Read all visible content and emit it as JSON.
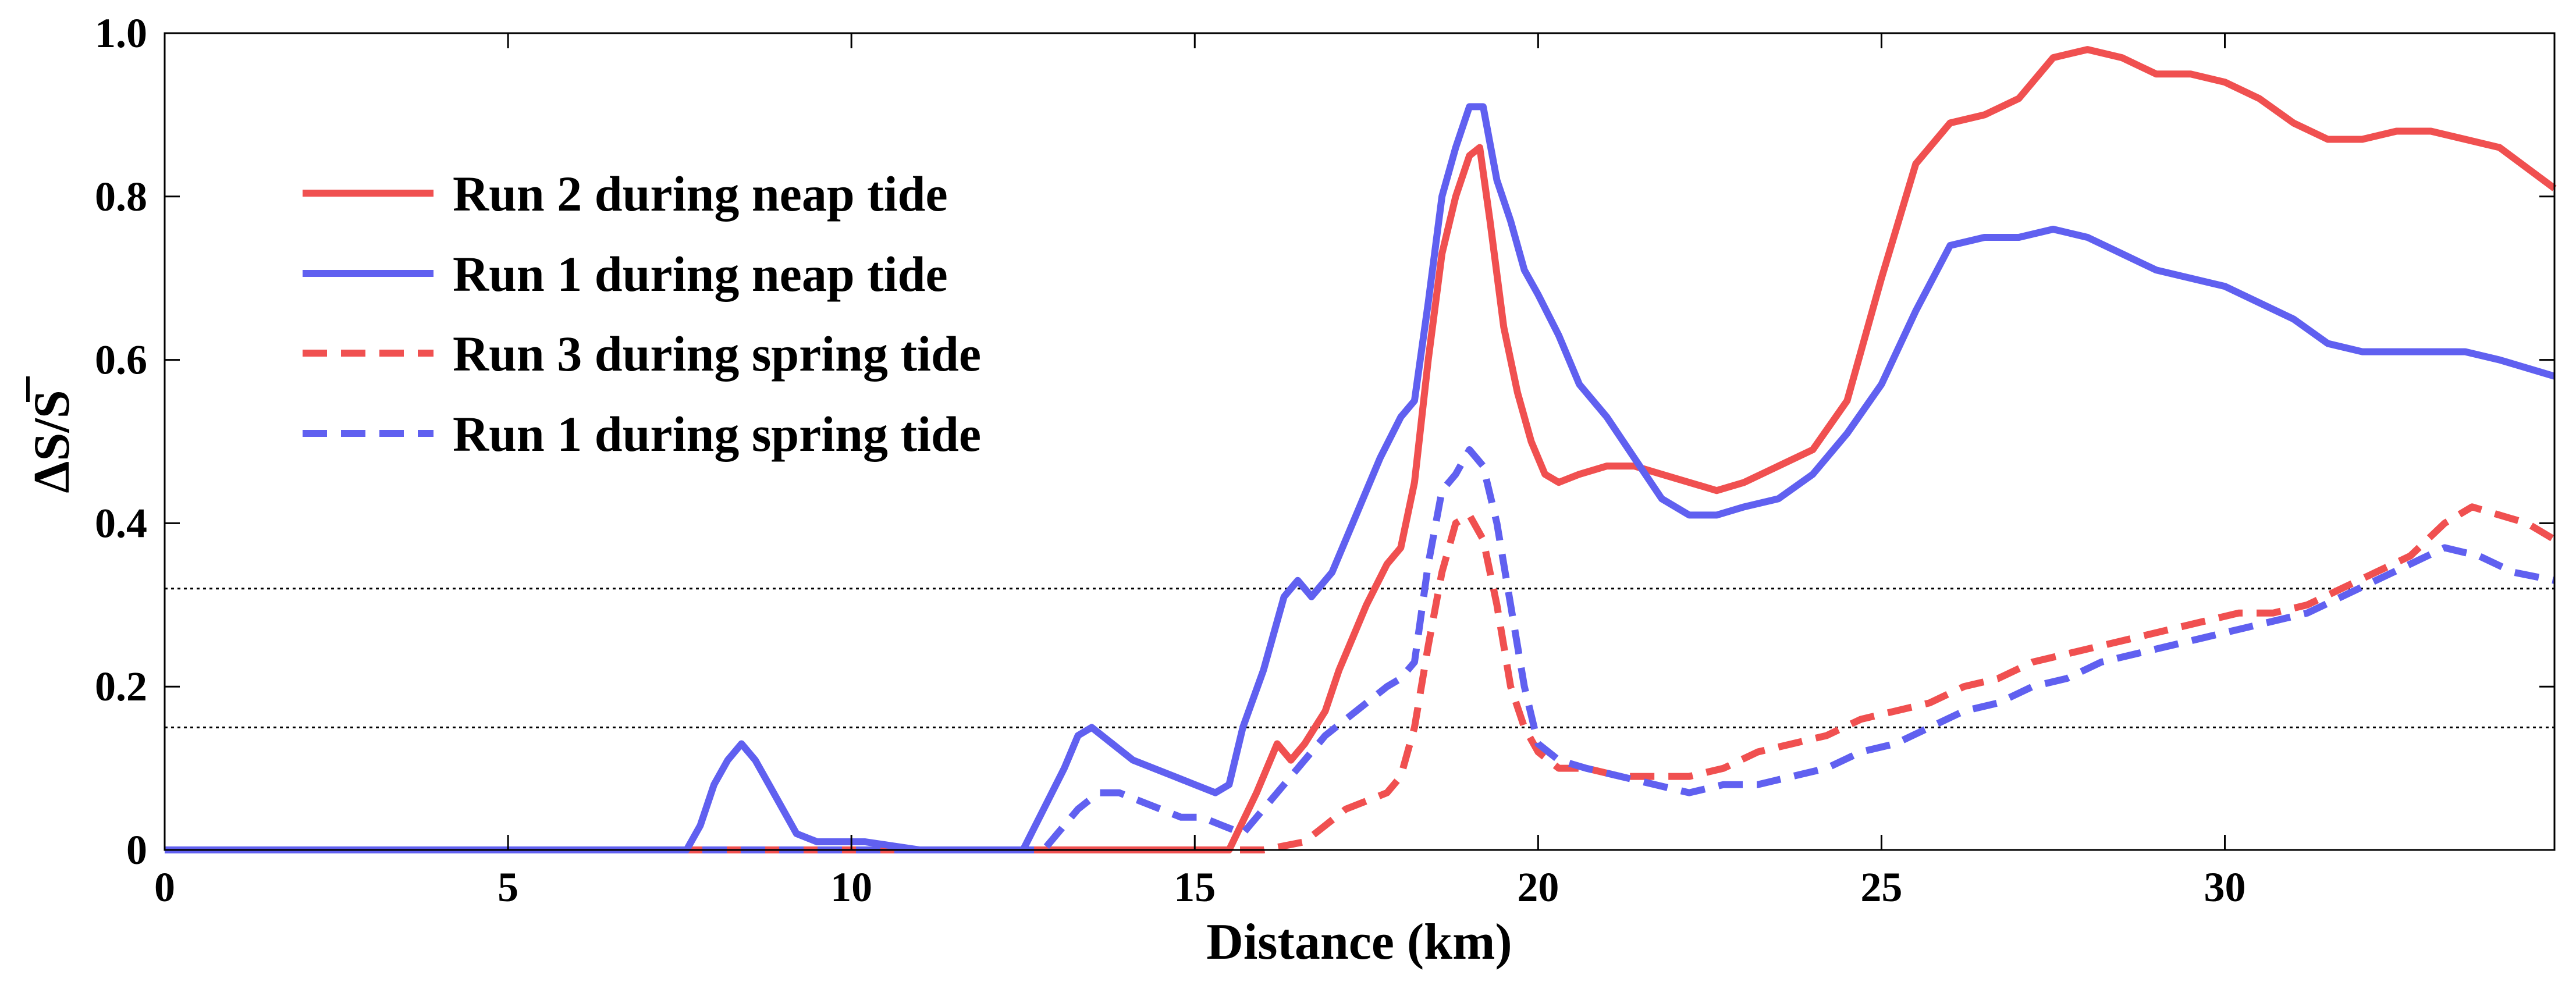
{
  "chart_data": {
    "type": "line",
    "title": "",
    "xlabel": "Distance (km)",
    "ylabel": "ΔS/S̄",
    "ylabel_parts": {
      "delta": "Δ",
      "s1": "S",
      "slash": "/",
      "s2": "S"
    },
    "xlim": [
      0,
      34.8
    ],
    "ylim": [
      0,
      1.0
    ],
    "xticks": [
      0,
      5,
      10,
      15,
      20,
      25,
      30
    ],
    "xtick_labels": [
      "0",
      "5",
      "10",
      "15",
      "20",
      "25",
      "30"
    ],
    "yticks": [
      0,
      0.2,
      0.4,
      0.6,
      0.8,
      1.0
    ],
    "ytick_labels": [
      "0",
      "0.2",
      "0.4",
      "0.6",
      "0.8",
      "1.0"
    ],
    "grid": false,
    "legend_position": "upper-left",
    "reference_lines": [
      {
        "name": "threshold-high",
        "y": 0.32,
        "style": "dotted",
        "color": "#000000"
      },
      {
        "name": "threshold-low",
        "y": 0.15,
        "style": "dotted",
        "color": "#000000"
      }
    ],
    "series": [
      {
        "name": "Run 2 during neap tide",
        "color": "#f05050",
        "style": "solid",
        "x": [
          0,
          15.5,
          15.9,
          16.2,
          16.4,
          16.6,
          16.9,
          17.1,
          17.3,
          17.5,
          17.8,
          18.0,
          18.2,
          18.4,
          18.6,
          18.8,
          19.0,
          19.15,
          19.3,
          19.5,
          19.7,
          19.9,
          20.1,
          20.3,
          20.6,
          21.0,
          21.4,
          21.8,
          22.2,
          22.6,
          23.0,
          23.5,
          24.0,
          24.5,
          25.0,
          25.5,
          26.0,
          26.5,
          27.0,
          27.5,
          28.0,
          28.5,
          29.0,
          29.5,
          30.0,
          30.5,
          31.0,
          31.5,
          32.0,
          32.5,
          33.0,
          33.5,
          34.0,
          34.8
        ],
        "y": [
          0,
          0,
          0.07,
          0.13,
          0.11,
          0.13,
          0.17,
          0.22,
          0.26,
          0.3,
          0.35,
          0.37,
          0.45,
          0.6,
          0.73,
          0.8,
          0.85,
          0.86,
          0.77,
          0.64,
          0.56,
          0.5,
          0.46,
          0.45,
          0.46,
          0.47,
          0.47,
          0.46,
          0.45,
          0.44,
          0.45,
          0.47,
          0.49,
          0.55,
          0.7,
          0.84,
          0.89,
          0.9,
          0.92,
          0.97,
          0.98,
          0.97,
          0.95,
          0.95,
          0.94,
          0.92,
          0.89,
          0.87,
          0.87,
          0.88,
          0.88,
          0.87,
          0.86,
          0.81
        ]
      },
      {
        "name": "Run 1 during neap tide",
        "color": "#6060f0",
        "style": "solid",
        "x": [
          0,
          7.6,
          7.8,
          8.0,
          8.2,
          8.4,
          8.6,
          8.8,
          9.0,
          9.2,
          9.5,
          9.8,
          10.2,
          10.6,
          11.0,
          12.0,
          12.5,
          12.8,
          13.1,
          13.3,
          13.5,
          13.8,
          14.1,
          14.4,
          14.7,
          15.0,
          15.3,
          15.5,
          15.7,
          16.0,
          16.3,
          16.5,
          16.7,
          17.0,
          17.3,
          17.5,
          17.7,
          18.0,
          18.2,
          18.4,
          18.6,
          18.8,
          19.0,
          19.2,
          19.4,
          19.6,
          19.8,
          20.0,
          20.3,
          20.6,
          21.0,
          21.4,
          21.8,
          22.2,
          22.6,
          23.0,
          23.5,
          24.0,
          24.5,
          25.0,
          25.5,
          26.0,
          26.5,
          27.0,
          27.5,
          28.0,
          28.5,
          29.0,
          29.5,
          30.0,
          30.5,
          31.0,
          31.5,
          32.0,
          32.5,
          33.0,
          33.5,
          34.0,
          34.8
        ],
        "y": [
          0,
          0,
          0.03,
          0.08,
          0.11,
          0.13,
          0.11,
          0.08,
          0.05,
          0.02,
          0.01,
          0.01,
          0.01,
          0.005,
          0,
          0,
          0,
          0.05,
          0.1,
          0.14,
          0.15,
          0.13,
          0.11,
          0.1,
          0.09,
          0.08,
          0.07,
          0.08,
          0.15,
          0.22,
          0.31,
          0.33,
          0.31,
          0.34,
          0.4,
          0.44,
          0.48,
          0.53,
          0.55,
          0.67,
          0.8,
          0.86,
          0.91,
          0.91,
          0.82,
          0.77,
          0.71,
          0.68,
          0.63,
          0.57,
          0.53,
          0.48,
          0.43,
          0.41,
          0.41,
          0.42,
          0.43,
          0.46,
          0.51,
          0.57,
          0.66,
          0.74,
          0.75,
          0.75,
          0.76,
          0.75,
          0.73,
          0.71,
          0.7,
          0.69,
          0.67,
          0.65,
          0.62,
          0.61,
          0.61,
          0.61,
          0.61,
          0.6,
          0.58
        ]
      },
      {
        "name": "Run 3 during spring tide",
        "color": "#f05050",
        "style": "dashed",
        "x": [
          0,
          16.0,
          16.6,
          16.9,
          17.2,
          17.5,
          17.8,
          18.0,
          18.2,
          18.4,
          18.6,
          18.8,
          19.0,
          19.2,
          19.4,
          19.6,
          19.8,
          20.0,
          20.3,
          20.7,
          21.2,
          21.7,
          22.2,
          22.7,
          23.2,
          23.7,
          24.2,
          24.7,
          25.2,
          25.7,
          26.2,
          26.7,
          27.2,
          27.7,
          28.2,
          28.7,
          29.2,
          29.7,
          30.2,
          30.7,
          31.2,
          31.7,
          32.2,
          32.7,
          33.2,
          33.6,
          34.0,
          34.4,
          34.8
        ],
        "y": [
          0,
          0,
          0.01,
          0.03,
          0.05,
          0.06,
          0.07,
          0.09,
          0.15,
          0.25,
          0.34,
          0.4,
          0.41,
          0.38,
          0.3,
          0.2,
          0.15,
          0.12,
          0.1,
          0.1,
          0.09,
          0.09,
          0.09,
          0.1,
          0.12,
          0.13,
          0.14,
          0.16,
          0.17,
          0.18,
          0.2,
          0.21,
          0.23,
          0.24,
          0.25,
          0.26,
          0.27,
          0.28,
          0.29,
          0.29,
          0.3,
          0.32,
          0.34,
          0.36,
          0.4,
          0.42,
          0.41,
          0.4,
          0.38
        ]
      },
      {
        "name": "Run 1 during spring tide",
        "color": "#6060f0",
        "style": "dashed",
        "x": [
          0,
          12.8,
          13.0,
          13.3,
          13.6,
          13.9,
          14.2,
          14.5,
          14.8,
          15.1,
          15.4,
          15.7,
          16.0,
          16.3,
          16.6,
          16.9,
          17.2,
          17.5,
          17.8,
          18.0,
          18.2,
          18.4,
          18.6,
          18.8,
          19.0,
          19.2,
          19.4,
          19.6,
          19.8,
          20.0,
          20.3,
          20.7,
          21.2,
          21.7,
          22.2,
          22.7,
          23.2,
          23.7,
          24.2,
          24.7,
          25.2,
          25.7,
          26.2,
          26.7,
          27.2,
          27.7,
          28.2,
          28.7,
          29.2,
          29.7,
          30.2,
          30.7,
          31.2,
          31.7,
          32.2,
          32.7,
          33.2,
          33.7,
          34.2,
          34.8
        ],
        "y": [
          0,
          0,
          0.02,
          0.05,
          0.07,
          0.07,
          0.06,
          0.05,
          0.04,
          0.04,
          0.03,
          0.02,
          0.05,
          0.08,
          0.11,
          0.14,
          0.16,
          0.18,
          0.2,
          0.21,
          0.23,
          0.35,
          0.44,
          0.46,
          0.49,
          0.47,
          0.4,
          0.3,
          0.2,
          0.13,
          0.11,
          0.1,
          0.09,
          0.08,
          0.07,
          0.08,
          0.08,
          0.09,
          0.1,
          0.12,
          0.13,
          0.15,
          0.17,
          0.18,
          0.2,
          0.21,
          0.23,
          0.24,
          0.25,
          0.26,
          0.27,
          0.28,
          0.29,
          0.31,
          0.33,
          0.35,
          0.37,
          0.36,
          0.34,
          0.33
        ]
      }
    ]
  }
}
